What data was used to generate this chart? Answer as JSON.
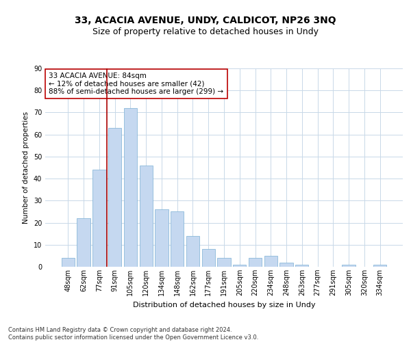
{
  "title1": "33, ACACIA AVENUE, UNDY, CALDICOT, NP26 3NQ",
  "title2": "Size of property relative to detached houses in Undy",
  "xlabel": "Distribution of detached houses by size in Undy",
  "ylabel": "Number of detached properties",
  "categories": [
    "48sqm",
    "62sqm",
    "77sqm",
    "91sqm",
    "105sqm",
    "120sqm",
    "134sqm",
    "148sqm",
    "162sqm",
    "177sqm",
    "191sqm",
    "205sqm",
    "220sqm",
    "234sqm",
    "248sqm",
    "263sqm",
    "277sqm",
    "291sqm",
    "305sqm",
    "320sqm",
    "334sqm"
  ],
  "bar_values": [
    4,
    22,
    44,
    63,
    72,
    46,
    26,
    25,
    14,
    8,
    4,
    1,
    4,
    5,
    2,
    1,
    0,
    0,
    1,
    0,
    1
  ],
  "bar_color": "#c5d8f0",
  "bar_edge_color": "#7bafd4",
  "ylim": [
    0,
    90
  ],
  "yticks": [
    0,
    10,
    20,
    30,
    40,
    50,
    60,
    70,
    80,
    90
  ],
  "vline_color": "#aa0000",
  "annotation_text": "33 ACACIA AVENUE: 84sqm\n← 12% of detached houses are smaller (42)\n88% of semi-detached houses are larger (299) →",
  "annotation_box_color": "#ffffff",
  "annotation_box_edge_color": "#bb0000",
  "footer": "Contains HM Land Registry data © Crown copyright and database right 2024.\nContains public sector information licensed under the Open Government Licence v3.0.",
  "bg_color": "#ffffff",
  "grid_color": "#c8d8e8",
  "title1_fontsize": 10,
  "title2_fontsize": 9,
  "xlabel_fontsize": 8,
  "ylabel_fontsize": 7.5,
  "tick_fontsize": 7,
  "annotation_fontsize": 7.5,
  "footer_fontsize": 6
}
